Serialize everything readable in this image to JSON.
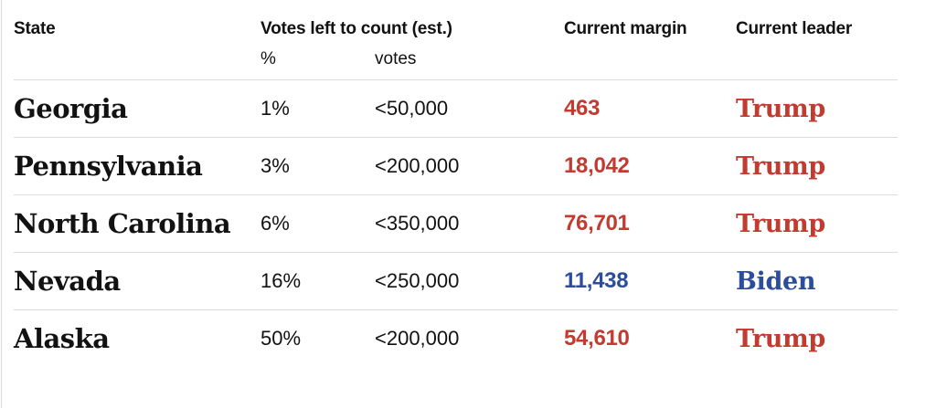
{
  "chart_data": {
    "type": "table",
    "header": {
      "state": "State",
      "votes_left_group": "Votes left to count (est.)",
      "pct": "%",
      "votes": "votes",
      "margin": "Current margin",
      "leader": "Current leader"
    },
    "rows": [
      {
        "state": "Georgia",
        "pct": "1%",
        "votes": "<50,000",
        "margin": "463",
        "leader": "Trump",
        "party": "rep"
      },
      {
        "state": "Pennsylvania",
        "pct": "3%",
        "votes": "<200,000",
        "margin": "18,042",
        "leader": "Trump",
        "party": "rep"
      },
      {
        "state": "North Carolina",
        "pct": "6%",
        "votes": "<350,000",
        "margin": "76,701",
        "leader": "Trump",
        "party": "rep"
      },
      {
        "state": "Nevada",
        "pct": "16%",
        "votes": "<250,000",
        "margin": "11,438",
        "leader": "Biden",
        "party": "dem"
      },
      {
        "state": "Alaska",
        "pct": "50%",
        "votes": "<200,000",
        "margin": "54,610",
        "leader": "Trump",
        "party": "rep"
      }
    ]
  },
  "colors": {
    "republican_red": "#c23a30",
    "democrat_blue": "#2b4d9b",
    "text": "#121212",
    "divider": "#dcdcdc",
    "background": "#ffffff"
  }
}
